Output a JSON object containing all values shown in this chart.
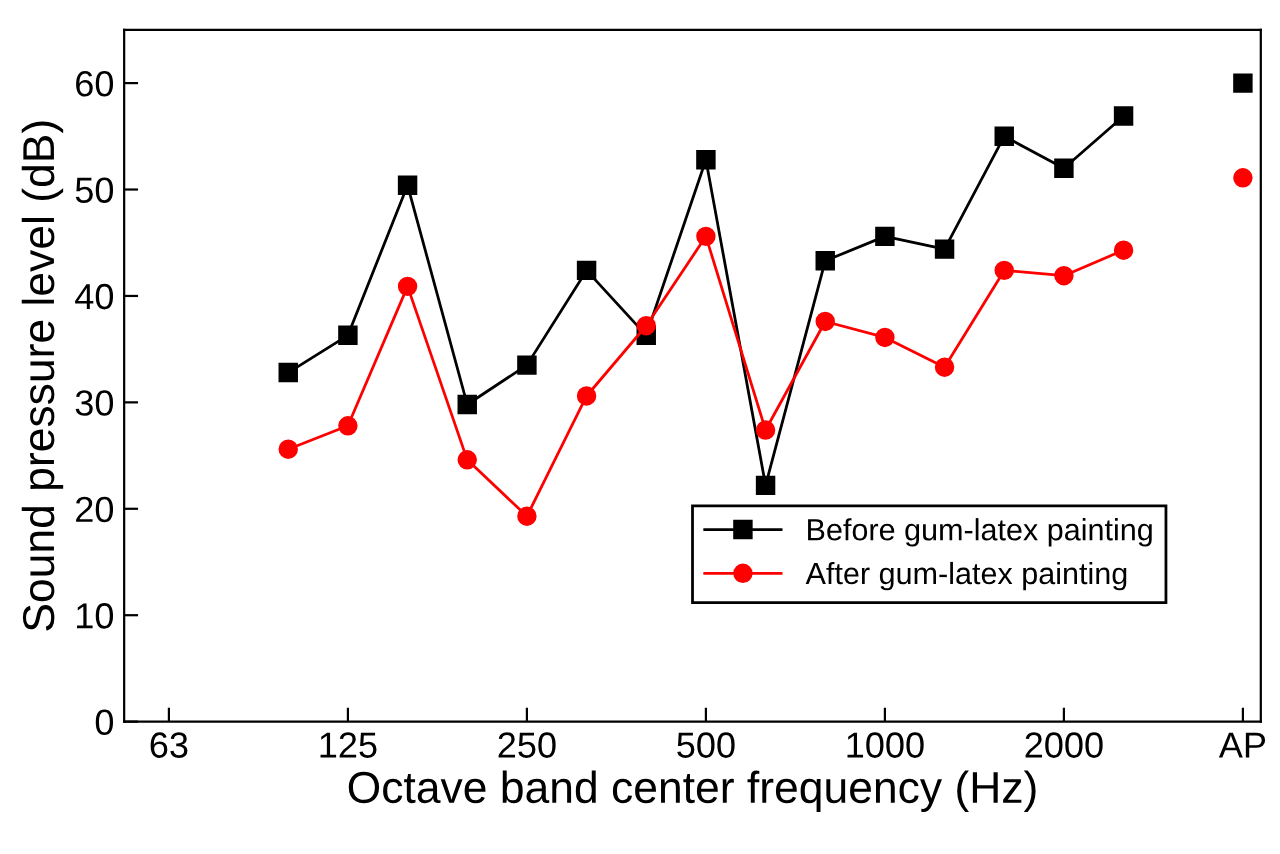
{
  "chart_data": {
    "type": "line",
    "xlabel": "Octave band center frequency (Hz)",
    "ylabel": "Sound pressure level (dB)",
    "categories": [
      "63",
      null,
      null,
      "125",
      null,
      null,
      "250",
      null,
      null,
      "500",
      null,
      null,
      "1000",
      null,
      null,
      "2000",
      null,
      null,
      "AP"
    ],
    "series": [
      {
        "name": "Before gum-latex painting",
        "color": "#000000",
        "marker": "square",
        "values": [
          null,
          null,
          32.8,
          36.3,
          50.4,
          29.8,
          33.5,
          42.4,
          36.3,
          52.8,
          22.2,
          43.3,
          45.6,
          44.4,
          55.0,
          52.0,
          56.9,
          null,
          60.0
        ]
      },
      {
        "name": "After gum-latex painting",
        "color": "#ff0000",
        "marker": "circle",
        "values": [
          null,
          null,
          25.6,
          27.8,
          40.9,
          24.6,
          19.3,
          30.6,
          37.2,
          45.6,
          27.4,
          37.6,
          36.1,
          33.3,
          42.4,
          41.9,
          44.3,
          null,
          51.1
        ]
      }
    ],
    "ylim": [
      0,
      65
    ],
    "yticks": [
      0,
      10,
      20,
      30,
      40,
      50,
      60
    ],
    "grid": false,
    "legend": "bottom right",
    "line_style": "solid"
  }
}
